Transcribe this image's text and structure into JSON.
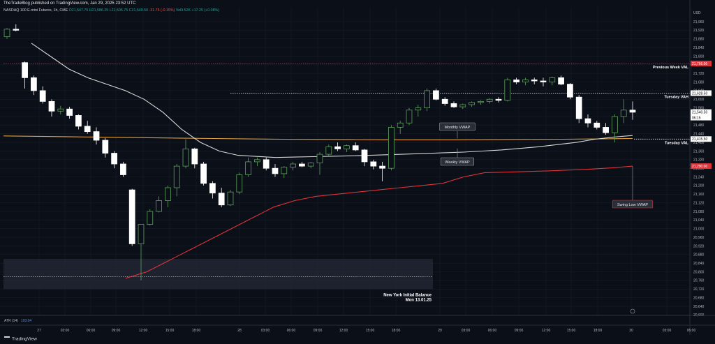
{
  "publisher": "TheTradeBlog published on TradingView.com, Jan 29, 2025 23:52 UTC",
  "legend": {
    "symbol": "NASDAQ 100 E-mini Futures, 1h, CME",
    "open": "O21,547.75",
    "high": "H21,586.25",
    "low": "L21,505.75",
    "close": "C21,540.50",
    "change": "-31.75 (-0.15%)",
    "volume": "Vol9.52K",
    "vol_change": "+17.25 (+0.08%)"
  },
  "currency": "USD",
  "atr": {
    "label": "ATR (14)",
    "value": "103.04"
  },
  "brand": "TradingView",
  "colors": {
    "background": "#0b0f17",
    "grid": "#1c2030",
    "candle_up": "#0b0f17",
    "candle_up_border": "#5fa35f",
    "candle_down": "#ffffff",
    "weekly_vwap": "#d8d8d8",
    "monthly_vwap": "#e6a03c",
    "swing_low_vwap": "#e0333a",
    "prev_week_val": "#b23c4c",
    "balance_zone": "#252a38"
  },
  "chart_data": {
    "type": "candlestick",
    "title": "",
    "xlabel": "",
    "ylabel": "",
    "ylim": [
      20580,
      22020
    ],
    "y_ticks": [
      20600,
      20640,
      20680,
      20720,
      20760,
      20800,
      20840,
      20880,
      20920,
      20960,
      21000,
      21040,
      21080,
      21120,
      21160,
      21200,
      21240,
      21280,
      21320,
      21360,
      21400,
      21440,
      21480,
      21520,
      21560,
      21600,
      21640,
      21680,
      21720,
      21760,
      21800,
      21840,
      21880,
      21920,
      21960
    ],
    "x_ticks": [
      "27",
      "03:00",
      "06:00",
      "09:00",
      "12:00",
      "15:00",
      "18:00",
      "28",
      "03:00",
      "06:00",
      "09:00",
      "12:00",
      "15:00",
      "18:00",
      "29",
      "03:00",
      "06:00",
      "09:00",
      "12:00",
      "15:00",
      "18:00",
      "30",
      "03:00",
      "06:00"
    ],
    "price_badges": [
      {
        "label": "21,766.00",
        "value": 21766,
        "color": "#e0333a"
      },
      {
        "label": "21,628.50",
        "value": 21628.5,
        "color": "#ffffff"
      },
      {
        "label": "21,540.50",
        "value": 21540.5,
        "color": "#ffffff"
      },
      {
        "label": "06:15",
        "value": 21515,
        "color": "#ffffff"
      },
      {
        "label": "21,415.50",
        "value": 21415.5,
        "color": "#ffffff"
      },
      {
        "label": "21,290.00",
        "value": 21290,
        "color": "#e0333a"
      }
    ],
    "levels": [
      {
        "name": "Previous Week VAL",
        "value": 21766,
        "style": "dotted",
        "color": "#b23c4c"
      },
      {
        "name": "Tuesday VAH",
        "value": 21628.5,
        "style": "dotted",
        "color": "#ffffff"
      },
      {
        "name": "Tuesday VAL",
        "value": 21415.5,
        "style": "dotted",
        "color": "#ffffff"
      }
    ],
    "zone": {
      "name": "New York Initial Balance",
      "subtitle": "Mon 13.01.25",
      "low": 20720,
      "high": 20860
    },
    "balance_mid": 20777,
    "annotations": [
      "Monthly VWAP",
      "Weekly VWAP",
      "Swing Low VWAP"
    ],
    "candles": [
      [
        21890,
        21930,
        21880,
        21925
      ],
      [
        21925,
        21948,
        21915,
        21920
      ],
      [
        21770,
        21775,
        21650,
        21700
      ],
      [
        21700,
        21710,
        21620,
        21640
      ],
      [
        21640,
        21660,
        21580,
        21590
      ],
      [
        21590,
        21600,
        21520,
        21545
      ],
      [
        21545,
        21570,
        21530,
        21555
      ],
      [
        21555,
        21565,
        21510,
        21525
      ],
      [
        21525,
        21530,
        21460,
        21475
      ],
      [
        21475,
        21500,
        21440,
        21450
      ],
      [
        21450,
        21470,
        21390,
        21410
      ],
      [
        21410,
        21420,
        21330,
        21350
      ],
      [
        21350,
        21360,
        21280,
        21300
      ],
      [
        21300,
        21310,
        21240,
        21250
      ],
      [
        21180,
        21185,
        20920,
        20930
      ],
      [
        20930,
        21020,
        20760,
        21020
      ],
      [
        21020,
        21090,
        21015,
        21080
      ],
      [
        21080,
        21150,
        21075,
        21130
      ],
      [
        21130,
        21200,
        21100,
        21190
      ],
      [
        21190,
        21300,
        21150,
        21290
      ],
      [
        21290,
        21415,
        21280,
        21370
      ],
      [
        21370,
        21375,
        21280,
        21300
      ],
      [
        21300,
        21310,
        21200,
        21210
      ],
      [
        21210,
        21220,
        21140,
        21165
      ],
      [
        21165,
        21190,
        21100,
        21110
      ],
      [
        21110,
        21180,
        21105,
        21170
      ],
      [
        21170,
        21260,
        21160,
        21250
      ],
      [
        21250,
        21330,
        21240,
        21310
      ],
      [
        21310,
        21330,
        21290,
        21320
      ],
      [
        21320,
        21330,
        21270,
        21280
      ],
      [
        21280,
        21300,
        21240,
        21255
      ],
      [
        21255,
        21290,
        21235,
        21285
      ],
      [
        21285,
        21310,
        21270,
        21300
      ],
      [
        21300,
        21310,
        21285,
        21290
      ],
      [
        21290,
        21310,
        21280,
        21305
      ],
      [
        21305,
        21355,
        21250,
        21345
      ],
      [
        21345,
        21390,
        21335,
        21380
      ],
      [
        21380,
        21400,
        21360,
        21370
      ],
      [
        21370,
        21390,
        21355,
        21385
      ],
      [
        21385,
        21400,
        21360,
        21365
      ],
      [
        21365,
        21370,
        21290,
        21310
      ],
      [
        21310,
        21320,
        21275,
        21290
      ],
      [
        21290,
        21310,
        21220,
        21280
      ],
      [
        21280,
        21480,
        21270,
        21470
      ],
      [
        21470,
        21500,
        21440,
        21490
      ],
      [
        21490,
        21560,
        21480,
        21550
      ],
      [
        21550,
        21575,
        21520,
        21560
      ],
      [
        21560,
        21650,
        21545,
        21640
      ],
      [
        21640,
        21650,
        21595,
        21600
      ],
      [
        21600,
        21610,
        21570,
        21580
      ],
      [
        21580,
        21590,
        21560,
        21565
      ],
      [
        21565,
        21580,
        21555,
        21575
      ],
      [
        21575,
        21590,
        21565,
        21585
      ],
      [
        21585,
        21595,
        21575,
        21590
      ],
      [
        21590,
        21605,
        21580,
        21600
      ],
      [
        21600,
        21610,
        21585,
        21595
      ],
      [
        21595,
        21700,
        21590,
        21690
      ],
      [
        21690,
        21700,
        21670,
        21680
      ],
      [
        21680,
        21700,
        21665,
        21690
      ],
      [
        21690,
        21700,
        21670,
        21685
      ],
      [
        21685,
        21700,
        21660,
        21680
      ],
      [
        21680,
        21705,
        21665,
        21700
      ],
      [
        21700,
        21710,
        21665,
        21670
      ],
      [
        21670,
        21675,
        21600,
        21610
      ],
      [
        21610,
        21620,
        21490,
        21510
      ],
      [
        21510,
        21530,
        21470,
        21490
      ],
      [
        21490,
        21500,
        21460,
        21470
      ],
      [
        21470,
        21490,
        21435,
        21445
      ],
      [
        21445,
        21530,
        21400,
        21520
      ],
      [
        21520,
        21600,
        21490,
        21550
      ],
      [
        21550,
        21590,
        21505,
        21540
      ]
    ],
    "series": [
      {
        "name": "Weekly VWAP",
        "values": [
          21860,
          21800,
          21740,
          21700,
          21670,
          21640,
          21600,
          21540,
          21460,
          21400,
          21360,
          21340,
          21335,
          21330,
          21332,
          21334,
          21336,
          21338,
          21340,
          21343,
          21346,
          21349,
          21352,
          21355,
          21360,
          21365,
          21372,
          21380,
          21390,
          21400,
          21415,
          21425,
          21432
        ]
      },
      {
        "name": "Monthly VWAP",
        "values": [
          21430,
          21428,
          21426,
          21424,
          21422,
          21420,
          21418,
          21416,
          21415,
          21414,
          21413,
          21412,
          21412,
          21412,
          21413,
          21414,
          21415,
          21416,
          21418
        ]
      },
      {
        "name": "Swing Low VWAP",
        "values": [
          20770,
          20800,
          20850,
          20900,
          20950,
          21000,
          21050,
          21100,
          21130,
          21150,
          21160,
          21170,
          21180,
          21190,
          21200,
          21210,
          21240,
          21260,
          21262,
          21265,
          21268,
          21272,
          21276,
          21282,
          21290
        ]
      }
    ]
  }
}
